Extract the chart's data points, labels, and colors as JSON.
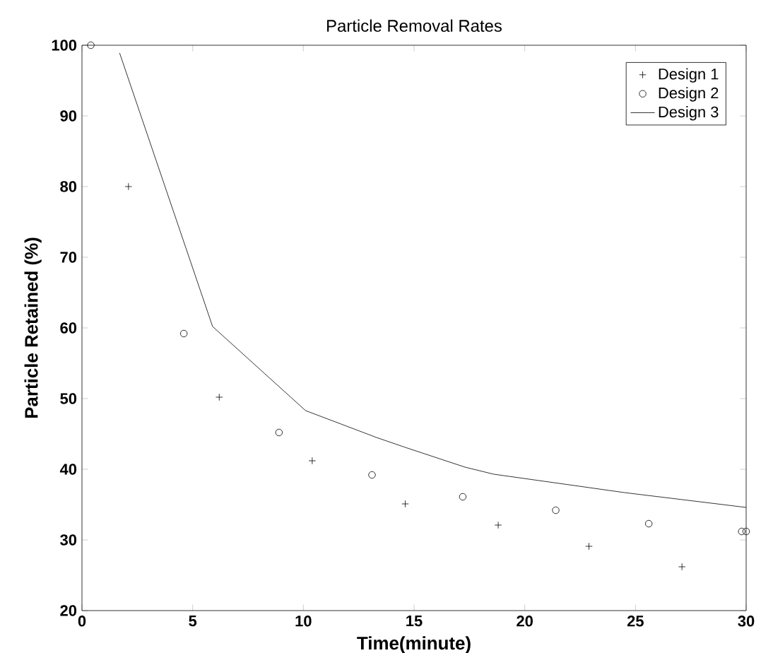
{
  "chart_data": {
    "type": "scatter",
    "title": "Particle Removal Rates",
    "xlabel": "Time(minute)",
    "ylabel": "Particle Retained (%)",
    "xlim": [
      0,
      30
    ],
    "ylim": [
      20,
      100
    ],
    "xticks": [
      0,
      5,
      10,
      15,
      20,
      25,
      30
    ],
    "yticks": [
      20,
      30,
      40,
      50,
      60,
      70,
      80,
      90,
      100
    ],
    "legend": "top right",
    "grid": false,
    "series": [
      {
        "name": "Design 1",
        "marker": "cross",
        "color": "#000000",
        "x": [
          2.1,
          6.2,
          10.4,
          14.6,
          18.8,
          22.9,
          27.1
        ],
        "values": [
          80,
          50.2,
          41.2,
          35.1,
          32.1,
          29.1,
          26.2
        ]
      },
      {
        "name": "Design 2",
        "marker": "circle",
        "color": "#000000",
        "x": [
          0.4,
          4.6,
          8.9,
          13.1,
          17.2,
          21.4,
          25.6,
          29.8,
          30
        ],
        "values": [
          100,
          59.2,
          45.2,
          39.2,
          36.1,
          34.2,
          32.3,
          31.2,
          31.2
        ]
      },
      {
        "name": "Design 3",
        "type": "line",
        "marker": "none",
        "line_style": "solid",
        "color": "#000000",
        "x": [
          1.7,
          5.9,
          10.1,
          13.3,
          14.6,
          17.3,
          18.6,
          24.5,
          30
        ],
        "values": [
          98.9,
          60.2,
          48.3,
          44.5,
          43.1,
          40.3,
          39.3,
          36.7,
          34.6
        ]
      }
    ]
  }
}
